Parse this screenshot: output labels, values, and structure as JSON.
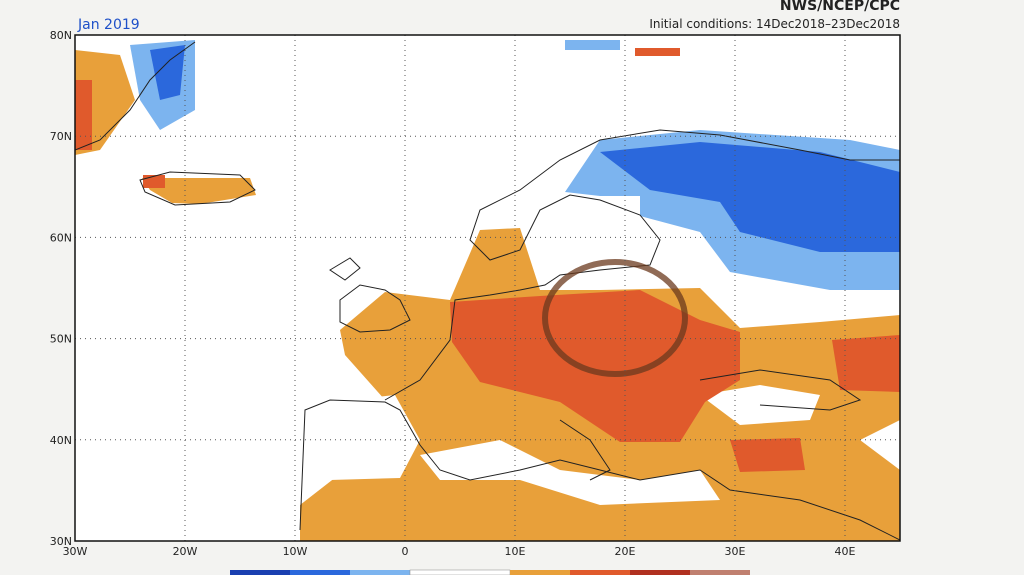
{
  "header": {
    "month": "Jan 2019",
    "agency": "NWS/NCEP/CPC",
    "initial_conditions": "Initial conditions: 14Dec2018–23Dec2018"
  },
  "map": {
    "lat_labels": [
      "80N",
      "70N",
      "60N",
      "50N",
      "40N",
      "30N"
    ],
    "lon_labels": [
      "30W",
      "20W",
      "10W",
      "0",
      "10E",
      "20E",
      "30E",
      "40E"
    ]
  }
}
